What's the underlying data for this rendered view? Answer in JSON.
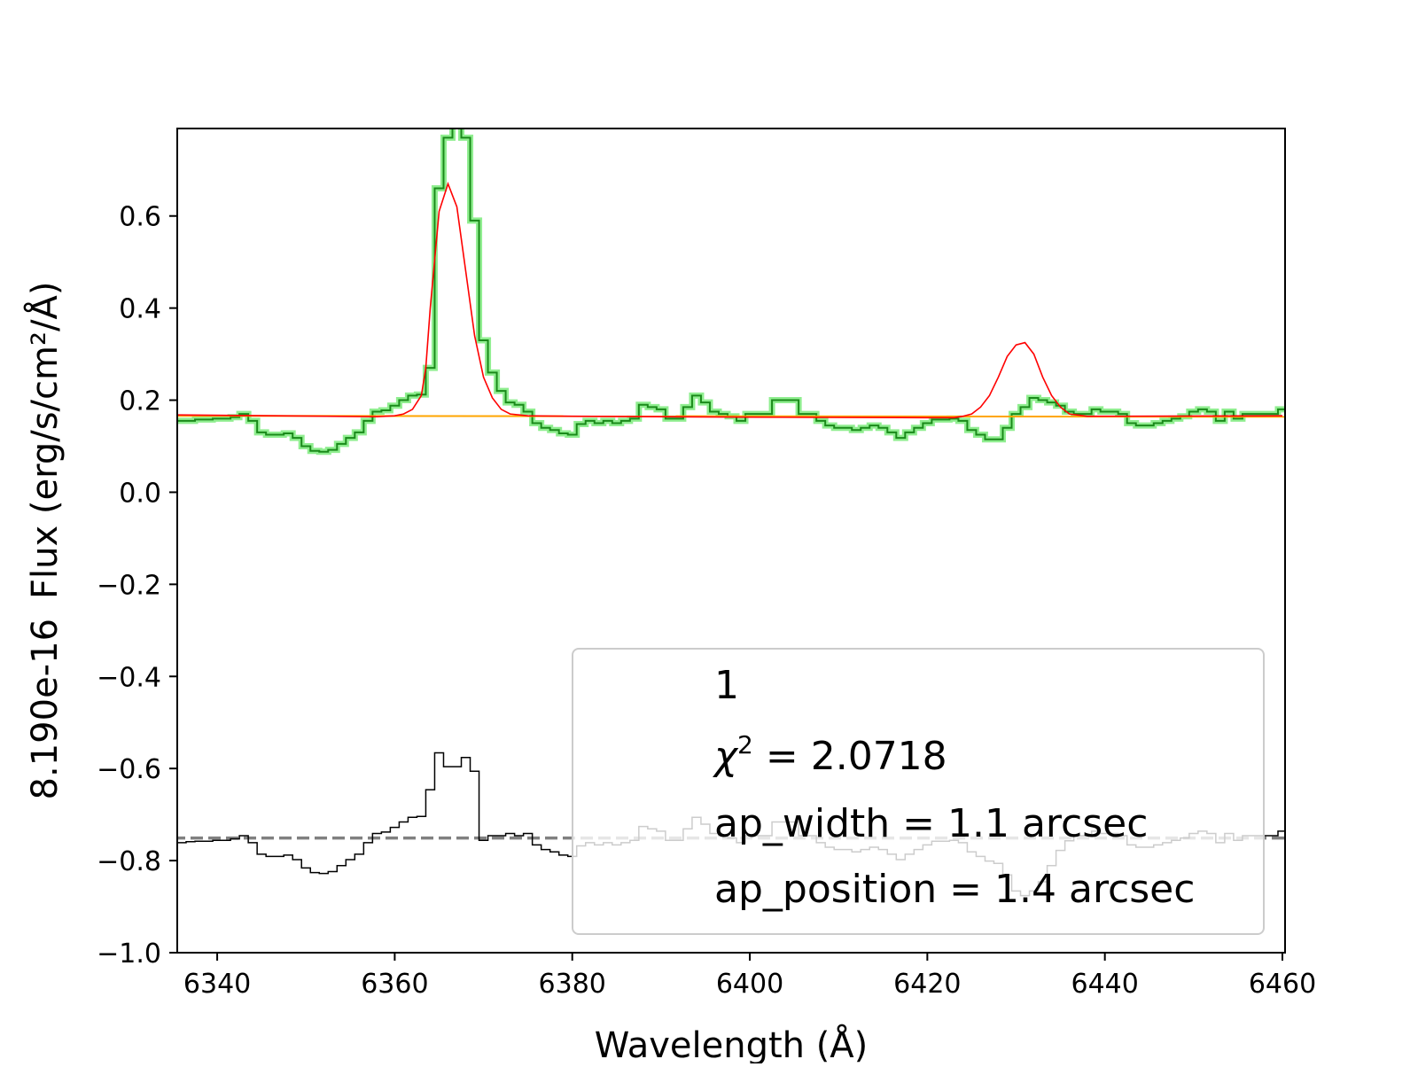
{
  "chart_data": {
    "type": "line",
    "xlabel": "Wavelength (Å)",
    "ylabel_scale": "8.190e-16",
    "ylabel": "Flux (erg/s/cm²/Å)",
    "xlim": [
      6335.5,
      6460.3
    ],
    "ylim": [
      -1.0,
      0.79
    ],
    "x_ticks": [
      6340,
      6360,
      6380,
      6400,
      6420,
      6440,
      6460
    ],
    "x_tick_labels": [
      "6340",
      "6360",
      "6380",
      "6400",
      "6420",
      "6440",
      "6460"
    ],
    "y_ticks": [
      0.6,
      0.4,
      0.2,
      0.0,
      -0.2,
      -0.4,
      -0.6,
      -0.8,
      -1.0
    ],
    "y_tick_labels": [
      "0.6",
      "0.4",
      "0.2",
      "0.0",
      "−0.2",
      "−0.4",
      "−0.6",
      "−0.8",
      "−1.0"
    ],
    "grid": false,
    "legend": {
      "placement": "lower-right",
      "lines": [
        {
          "id": "id",
          "text": "1"
        },
        {
          "id": "chi2",
          "symbol": "χ",
          "sup": "2",
          "text": " = 2.0718"
        },
        {
          "id": "ap_width",
          "text": "ap_width = 1.1 arcsec"
        },
        {
          "id": "ap_position",
          "text": "ap_position = 1.4 arcsec"
        }
      ]
    },
    "colors": {
      "data": "#1a8a1a",
      "data_halo": "#90ee90",
      "model": "#ff0000",
      "continuum": "#ffa500",
      "residual": "#000000",
      "residual_baseline": "#808080"
    },
    "series": [
      {
        "id": "data",
        "style": "step",
        "x": [
          6334.5,
          6335.5,
          6336.5,
          6337.5,
          6338.5,
          6339.5,
          6340.5,
          6341.5,
          6342.5,
          6343.5,
          6344.5,
          6345.5,
          6346.5,
          6347.5,
          6348.5,
          6349.5,
          6350.5,
          6351.5,
          6352.5,
          6353.5,
          6354.5,
          6355.5,
          6356.5,
          6357.5,
          6358.5,
          6359.5,
          6360.5,
          6361.5,
          6362.5,
          6363.5,
          6364.5,
          6365.5,
          6366.5,
          6367.5,
          6368.5,
          6369.5,
          6370.5,
          6371.5,
          6372.5,
          6373.5,
          6374.5,
          6375.5,
          6376.5,
          6377.5,
          6378.5,
          6379.5,
          6380.5,
          6381.5,
          6382.5,
          6383.5,
          6384.5,
          6385.5,
          6386.5,
          6387.5,
          6388.5,
          6389.5,
          6390.5,
          6391.5,
          6392.5,
          6393.5,
          6394.5,
          6395.5,
          6396.5,
          6397.5,
          6398.5,
          6399.5,
          6400.5,
          6401.5,
          6402.5,
          6403.5,
          6404.5,
          6405.5,
          6406.5,
          6407.5,
          6408.5,
          6409.5,
          6410.5,
          6411.5,
          6412.5,
          6413.5,
          6414.5,
          6415.5,
          6416.5,
          6417.5,
          6418.5,
          6419.5,
          6420.5,
          6421.5,
          6422.5,
          6423.5,
          6424.5,
          6425.5,
          6426.5,
          6427.5,
          6428.5,
          6429.5,
          6430.5,
          6431.5,
          6432.5,
          6433.5,
          6434.5,
          6435.5,
          6436.5,
          6437.5,
          6438.5,
          6439.5,
          6440.5,
          6441.5,
          6442.5,
          6443.5,
          6444.5,
          6445.5,
          6446.5,
          6447.5,
          6448.5,
          6449.5,
          6450.5,
          6451.5,
          6452.5,
          6453.5,
          6454.5,
          6455.5,
          6456.5,
          6457.5,
          6458.5,
          6459.5
        ],
        "y": [
          0.155,
          0.155,
          0.155,
          0.158,
          0.158,
          0.16,
          0.16,
          0.163,
          0.17,
          0.155,
          0.13,
          0.125,
          0.125,
          0.128,
          0.118,
          0.1,
          0.09,
          0.088,
          0.092,
          0.105,
          0.118,
          0.13,
          0.155,
          0.175,
          0.178,
          0.188,
          0.2,
          0.21,
          0.212,
          0.27,
          0.66,
          0.77,
          0.8,
          0.77,
          0.59,
          0.33,
          0.26,
          0.22,
          0.195,
          0.19,
          0.175,
          0.15,
          0.14,
          0.135,
          0.128,
          0.125,
          0.148,
          0.155,
          0.15,
          0.155,
          0.15,
          0.155,
          0.16,
          0.19,
          0.185,
          0.18,
          0.16,
          0.16,
          0.185,
          0.21,
          0.195,
          0.175,
          0.17,
          0.165,
          0.155,
          0.17,
          0.17,
          0.17,
          0.2,
          0.2,
          0.2,
          0.17,
          0.17,
          0.155,
          0.145,
          0.14,
          0.14,
          0.135,
          0.14,
          0.145,
          0.14,
          0.13,
          0.118,
          0.13,
          0.14,
          0.15,
          0.158,
          0.158,
          0.16,
          0.155,
          0.135,
          0.125,
          0.115,
          0.115,
          0.14,
          0.17,
          0.185,
          0.205,
          0.2,
          0.195,
          0.188,
          0.175,
          0.17,
          0.17,
          0.18,
          0.175,
          0.175,
          0.17,
          0.15,
          0.145,
          0.145,
          0.15,
          0.155,
          0.16,
          0.165,
          0.175,
          0.18,
          0.175,
          0.155,
          0.175,
          0.16,
          0.17,
          0.17,
          0.17,
          0.17,
          0.18
        ]
      },
      {
        "id": "model",
        "style": "line",
        "x": [
          6335,
          6358,
          6360,
          6361,
          6362,
          6363,
          6363.5,
          6364,
          6365,
          6366,
          6367,
          6368,
          6369,
          6370,
          6371,
          6372,
          6373,
          6375,
          6380,
          6400,
          6420,
          6423,
          6424,
          6425,
          6426,
          6427,
          6428,
          6429,
          6430,
          6431,
          6432,
          6433,
          6434,
          6435,
          6436,
          6438,
          6460
        ],
        "y": [
          0.168,
          0.164,
          0.166,
          0.17,
          0.18,
          0.21,
          0.27,
          0.4,
          0.61,
          0.67,
          0.62,
          0.48,
          0.34,
          0.25,
          0.205,
          0.18,
          0.17,
          0.166,
          0.165,
          0.163,
          0.162,
          0.162,
          0.165,
          0.17,
          0.185,
          0.21,
          0.25,
          0.295,
          0.32,
          0.325,
          0.3,
          0.25,
          0.21,
          0.185,
          0.17,
          0.165,
          0.166
        ]
      },
      {
        "id": "continuum",
        "style": "line",
        "x": [
          6335,
          6460.3
        ],
        "y": [
          0.166,
          0.164
        ]
      },
      {
        "id": "residual",
        "style": "step",
        "x": [
          6334.5,
          6335.5,
          6336.5,
          6337.5,
          6338.5,
          6339.5,
          6340.5,
          6341.5,
          6342.5,
          6343.5,
          6344.5,
          6345.5,
          6346.5,
          6347.5,
          6348.5,
          6349.5,
          6350.5,
          6351.5,
          6352.5,
          6353.5,
          6354.5,
          6355.5,
          6356.5,
          6357.5,
          6358.5,
          6359.5,
          6360.5,
          6361.5,
          6362.5,
          6363.5,
          6364.5,
          6365.5,
          6366.5,
          6367.5,
          6368.5,
          6369.5,
          6370.5,
          6371.5,
          6372.5,
          6373.5,
          6374.5,
          6375.5,
          6376.5,
          6377.5,
          6378.5,
          6379.5,
          6380.5,
          6381.5,
          6382.5,
          6383.5,
          6384.5,
          6385.5,
          6386.5,
          6387.5,
          6388.5,
          6389.5,
          6390.5,
          6391.5,
          6392.5,
          6393.5,
          6394.5,
          6395.5,
          6396.5,
          6397.5,
          6398.5,
          6399.5,
          6400.5,
          6401.5,
          6402.5,
          6403.5,
          6404.5,
          6405.5,
          6406.5,
          6407.5,
          6408.5,
          6409.5,
          6410.5,
          6411.5,
          6412.5,
          6413.5,
          6414.5,
          6415.5,
          6416.5,
          6417.5,
          6418.5,
          6419.5,
          6420.5,
          6421.5,
          6422.5,
          6423.5,
          6424.5,
          6425.5,
          6426.5,
          6427.5,
          6428.5,
          6429.5,
          6430.5,
          6431.5,
          6432.5,
          6433.5,
          6434.5,
          6435.5,
          6436.5,
          6437.5,
          6438.5,
          6439.5,
          6440.5,
          6441.5,
          6442.5,
          6443.5,
          6444.5,
          6445.5,
          6446.5,
          6447.5,
          6448.5,
          6449.5,
          6450.5,
          6451.5,
          6452.5,
          6453.5,
          6454.5,
          6455.5,
          6456.5,
          6457.5,
          6458.5,
          6459.5
        ],
        "y": [
          -0.761,
          -0.761,
          -0.759,
          -0.758,
          -0.758,
          -0.756,
          -0.756,
          -0.753,
          -0.746,
          -0.761,
          -0.786,
          -0.791,
          -0.791,
          -0.788,
          -0.798,
          -0.816,
          -0.826,
          -0.828,
          -0.824,
          -0.811,
          -0.798,
          -0.786,
          -0.761,
          -0.741,
          -0.738,
          -0.728,
          -0.716,
          -0.706,
          -0.704,
          -0.646,
          -0.566,
          -0.596,
          -0.596,
          -0.576,
          -0.606,
          -0.756,
          -0.746,
          -0.746,
          -0.741,
          -0.746,
          -0.741,
          -0.766,
          -0.776,
          -0.781,
          -0.788,
          -0.791,
          -0.768,
          -0.761,
          -0.766,
          -0.761,
          -0.766,
          -0.761,
          -0.756,
          -0.726,
          -0.731,
          -0.736,
          -0.756,
          -0.756,
          -0.731,
          -0.706,
          -0.721,
          -0.741,
          -0.746,
          -0.751,
          -0.761,
          -0.746,
          -0.746,
          -0.746,
          -0.716,
          -0.716,
          -0.716,
          -0.746,
          -0.746,
          -0.761,
          -0.771,
          -0.776,
          -0.776,
          -0.781,
          -0.776,
          -0.771,
          -0.776,
          -0.786,
          -0.798,
          -0.786,
          -0.776,
          -0.766,
          -0.758,
          -0.758,
          -0.756,
          -0.761,
          -0.781,
          -0.791,
          -0.801,
          -0.806,
          -0.831,
          -0.866,
          -0.876,
          -0.866,
          -0.846,
          -0.811,
          -0.778,
          -0.757,
          -0.746,
          -0.746,
          -0.736,
          -0.741,
          -0.741,
          -0.746,
          -0.766,
          -0.771,
          -0.771,
          -0.766,
          -0.761,
          -0.756,
          -0.751,
          -0.741,
          -0.736,
          -0.741,
          -0.761,
          -0.741,
          -0.756,
          -0.746,
          -0.746,
          -0.746,
          -0.746,
          -0.736
        ]
      },
      {
        "id": "residual_baseline",
        "style": "dashed",
        "x": [
          6335,
          6460.3
        ],
        "y": [
          -0.751,
          -0.751
        ]
      }
    ]
  }
}
